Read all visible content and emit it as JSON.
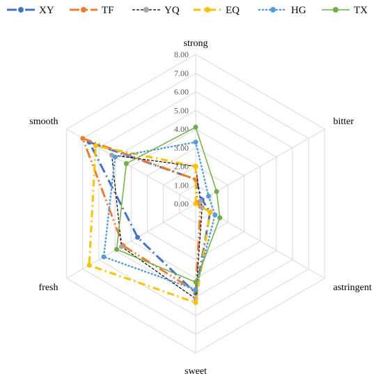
{
  "chart_data": {
    "type": "radar",
    "axes": [
      "strong",
      "bitter",
      "astringent",
      "sweet",
      "fresh",
      "smooth"
    ],
    "rlim": [
      0,
      8
    ],
    "tick_labels": [
      "0.00",
      "1.00",
      "2.00",
      "3.00",
      "4.00",
      "5.00",
      "6.00",
      "7.00",
      "8.00"
    ],
    "grid": true,
    "legend_position": "top",
    "series": [
      {
        "name": "XY",
        "values": [
          1.3,
          0.4,
          0.9,
          4.8,
          3.6,
          6.6
        ],
        "color": "#4472C4",
        "dash": "long-dash-dot"
      },
      {
        "name": "TF",
        "values": [
          1.3,
          0.1,
          0.3,
          4.7,
          4.5,
          7.0
        ],
        "color": "#ED7D31",
        "dash": "long-dash-dot-dot"
      },
      {
        "name": "YQ",
        "values": [
          2.0,
          0.3,
          0.4,
          5.1,
          4.6,
          5.2
        ],
        "color": "#A5A5A5",
        "dash": "dash",
        "line_color": "#000000"
      },
      {
        "name": "EQ",
        "values": [
          2.0,
          0.0,
          0.9,
          5.3,
          6.6,
          6.2
        ],
        "color": "#FFC000",
        "dash": "dash-dot"
      },
      {
        "name": "HG",
        "values": [
          3.3,
          0.8,
          1.2,
          4.6,
          5.7,
          5.0
        ],
        "color": "#5B9BD5",
        "dash": "dot"
      },
      {
        "name": "TX",
        "values": [
          4.1,
          1.3,
          1.5,
          4.2,
          4.9,
          4.3
        ],
        "color": "#70AD47",
        "dash": "solid"
      }
    ]
  }
}
